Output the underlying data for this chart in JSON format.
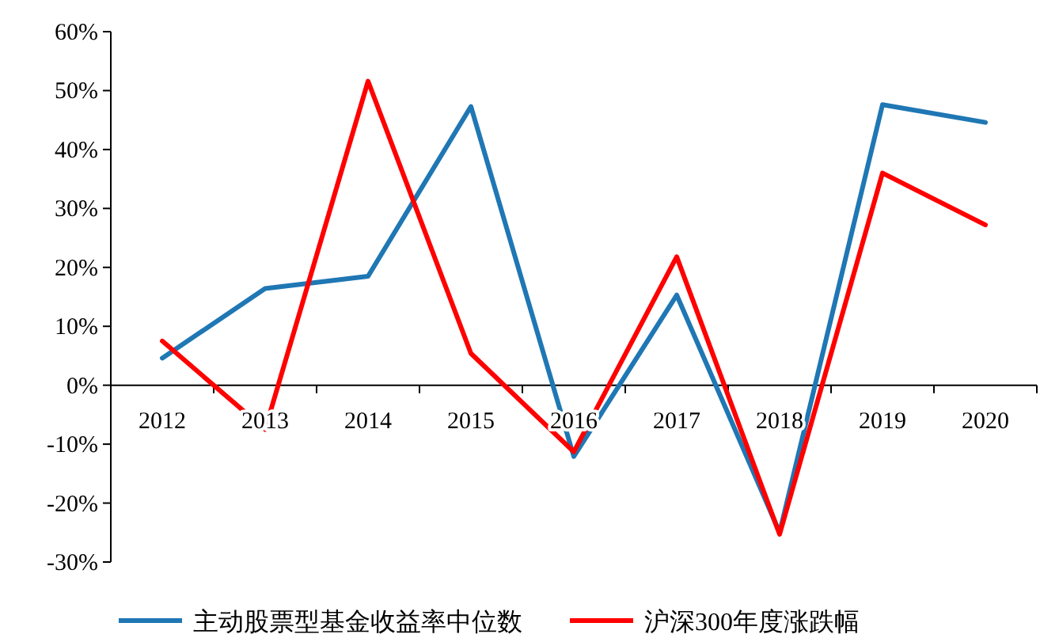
{
  "chart_data": {
    "type": "line",
    "categories": [
      "2012",
      "2013",
      "2014",
      "2015",
      "2016",
      "2017",
      "2018",
      "2019",
      "2020"
    ],
    "series": [
      {
        "name": "主动股票型基金收益率中位数",
        "color": "#1f77b4",
        "values": [
          4.6,
          16.4,
          18.5,
          47.3,
          -12.1,
          15.3,
          -25,
          47.6,
          44.6
        ]
      },
      {
        "name": "沪深300年度涨跌幅",
        "color": "#ff0000",
        "values": [
          7.5,
          -7.5,
          51.6,
          5.4,
          -11.3,
          21.8,
          -25.3,
          36.0,
          27.2
        ]
      }
    ],
    "ylim": [
      -30,
      60
    ],
    "yticks": [
      {
        "value": -30,
        "label": "-30%"
      },
      {
        "value": -20,
        "label": "-20%"
      },
      {
        "value": -10,
        "label": "-10%"
      },
      {
        "value": 0,
        "label": "0%"
      },
      {
        "value": 10,
        "label": "10%"
      },
      {
        "value": 20,
        "label": "20%"
      },
      {
        "value": 30,
        "label": "30%"
      },
      {
        "value": 40,
        "label": "40%"
      },
      {
        "value": 50,
        "label": "50%"
      },
      {
        "value": 60,
        "label": "60%"
      }
    ],
    "grid": false,
    "legend": "bottom",
    "marker": "none",
    "line_style": "solid"
  }
}
